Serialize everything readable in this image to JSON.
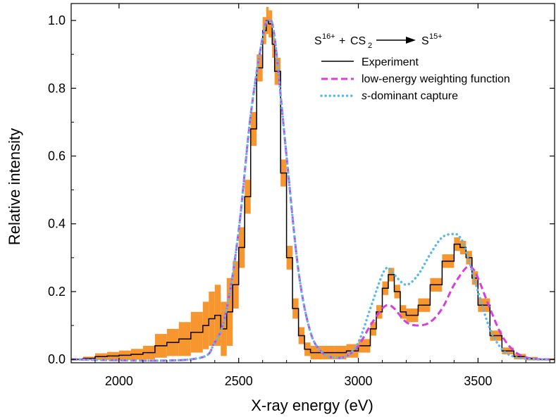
{
  "chart_data": {
    "type": "line",
    "title": "",
    "xlabel": "X-ray energy (eV)",
    "ylabel": "Relative intensity",
    "xlim": [
      1800,
      3820
    ],
    "ylim": [
      -0.01,
      1.05
    ],
    "grid": false,
    "legend_position": "top-right",
    "x_ticks": [
      {
        "value": 2000,
        "label": "2000"
      },
      {
        "value": 2500,
        "label": "2500"
      },
      {
        "value": 3000,
        "label": "3000"
      },
      {
        "value": 3500,
        "label": "3500"
      }
    ],
    "y_ticks": [
      {
        "value": 0.0,
        "label": "0.0"
      },
      {
        "value": 0.2,
        "label": "0.2"
      },
      {
        "value": 0.4,
        "label": "0.4"
      },
      {
        "value": 0.6,
        "label": "0.6"
      },
      {
        "value": 0.8,
        "label": "0.8"
      },
      {
        "value": 1.0,
        "label": "1.0"
      }
    ],
    "reaction": {
      "projectile": "S",
      "projectile_charge": "16+",
      "plus": "+",
      "target": "CS",
      "target_subscript": "2",
      "product": "S",
      "product_charge": "15+"
    },
    "series": [
      {
        "name": "Experiment",
        "style": "step",
        "color": "#000000",
        "error_band_color": "#F7962F",
        "x": [
          1800,
          1850,
          1900,
          1950,
          2000,
          2050,
          2100,
          2150,
          2200,
          2250,
          2300,
          2350,
          2375,
          2400,
          2425,
          2450,
          2475,
          2500,
          2525,
          2550,
          2575,
          2600,
          2615,
          2625,
          2640,
          2650,
          2675,
          2700,
          2725,
          2750,
          2775,
          2800,
          2850,
          2900,
          2950,
          3000,
          3050,
          3075,
          3100,
          3125,
          3150,
          3175,
          3200,
          3250,
          3300,
          3350,
          3400,
          3425,
          3450,
          3475,
          3500,
          3550,
          3600,
          3650,
          3700,
          3750,
          3800
        ],
        "y": [
          0.0,
          0.003,
          0.008,
          0.01,
          0.012,
          0.015,
          0.02,
          0.04,
          0.05,
          0.06,
          0.08,
          0.1,
          0.12,
          0.13,
          0.09,
          0.14,
          0.22,
          0.33,
          0.48,
          0.68,
          0.86,
          0.97,
          1.0,
          0.99,
          0.93,
          0.85,
          0.55,
          0.3,
          0.15,
          0.07,
          0.03,
          0.02,
          0.02,
          0.02,
          0.025,
          0.04,
          0.09,
          0.14,
          0.21,
          0.25,
          0.2,
          0.14,
          0.13,
          0.16,
          0.22,
          0.29,
          0.34,
          0.33,
          0.3,
          0.24,
          0.16,
          0.07,
          0.025,
          0.008,
          0.002,
          0.0,
          0.0
        ],
        "err": [
          0.003,
          0.005,
          0.01,
          0.012,
          0.014,
          0.016,
          0.02,
          0.035,
          0.04,
          0.05,
          0.06,
          0.07,
          0.08,
          0.09,
          0.08,
          0.1,
          0.07,
          0.06,
          0.05,
          0.05,
          0.04,
          0.04,
          0.04,
          0.04,
          0.04,
          0.04,
          0.04,
          0.035,
          0.03,
          0.025,
          0.02,
          0.02,
          0.02,
          0.02,
          0.02,
          0.02,
          0.02,
          0.02,
          0.02,
          0.02,
          0.02,
          0.02,
          0.02,
          0.02,
          0.02,
          0.02,
          0.02,
          0.02,
          0.02,
          0.02,
          0.02,
          0.015,
          0.01,
          0.008,
          0.005,
          0.003,
          0.003
        ]
      },
      {
        "name": "low-energy weighting function",
        "style": "dashed",
        "color": "#D43FE0",
        "x": [
          1800,
          2300,
          2400,
          2450,
          2500,
          2550,
          2600,
          2625,
          2650,
          2700,
          2750,
          2800,
          2850,
          2900,
          2950,
          3000,
          3050,
          3100,
          3125,
          3150,
          3200,
          3250,
          3300,
          3350,
          3400,
          3450,
          3475,
          3500,
          3550,
          3600,
          3650,
          3700,
          3750,
          3800
        ],
        "y": [
          0.0,
          0.0,
          0.05,
          0.15,
          0.38,
          0.72,
          0.95,
          1.0,
          0.95,
          0.6,
          0.26,
          0.08,
          0.02,
          0.005,
          0.01,
          0.04,
          0.1,
          0.15,
          0.16,
          0.15,
          0.11,
          0.1,
          0.11,
          0.15,
          0.22,
          0.27,
          0.27,
          0.24,
          0.15,
          0.07,
          0.025,
          0.006,
          0.001,
          0.0
        ]
      },
      {
        "name": "s-dominant capture",
        "name_italic_part": "s",
        "name_rest": "-dominant capture",
        "style": "dotted",
        "color": "#5BB8EA",
        "x": [
          1800,
          2300,
          2400,
          2450,
          2500,
          2550,
          2600,
          2625,
          2650,
          2700,
          2750,
          2800,
          2850,
          2900,
          2950,
          3000,
          3050,
          3100,
          3125,
          3150,
          3200,
          3250,
          3300,
          3350,
          3400,
          3425,
          3450,
          3500,
          3550,
          3600,
          3650,
          3700,
          3750,
          3800
        ],
        "y": [
          0.0,
          0.0,
          0.05,
          0.15,
          0.38,
          0.72,
          0.95,
          1.0,
          0.95,
          0.6,
          0.26,
          0.08,
          0.02,
          0.005,
          0.01,
          0.05,
          0.15,
          0.25,
          0.27,
          0.25,
          0.22,
          0.25,
          0.31,
          0.36,
          0.37,
          0.36,
          0.32,
          0.2,
          0.09,
          0.03,
          0.008,
          0.002,
          0.0,
          0.0
        ]
      }
    ]
  }
}
